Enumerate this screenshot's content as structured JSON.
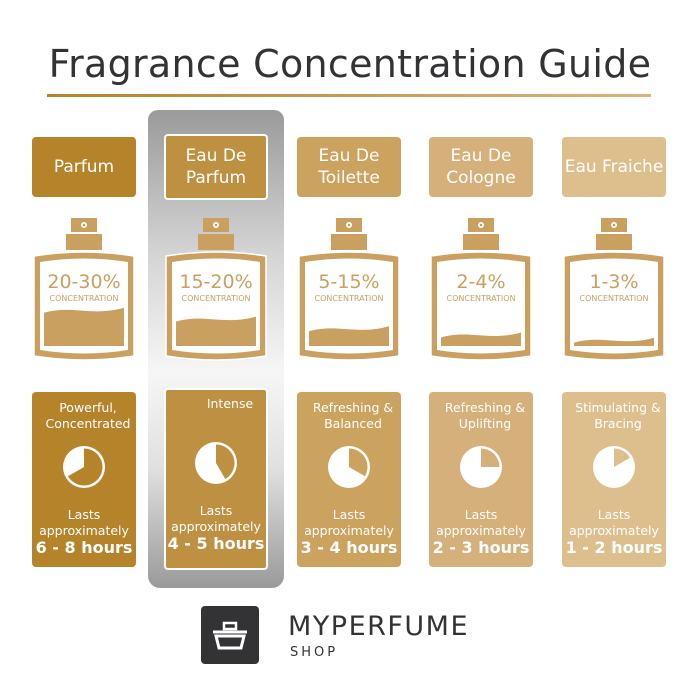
{
  "title": "Fragrance Concentration Guide",
  "bottle_color": "#C9A060",
  "concentration_label": "CONCENTRATION",
  "lasts_label_1": "Lasts",
  "lasts_label_2": "approximately",
  "columns": [
    {
      "name": "Parfum",
      "concentration": "20-30%",
      "description": "Powerful, Concentrated",
      "duration": "6 - 8 hours",
      "pie_hours": 8,
      "fill_level": 0.8,
      "color": "#B5832A",
      "highlighted": false
    },
    {
      "name": "Eau De Parfum",
      "concentration": "15-20%",
      "description": "Intense",
      "duration": "4 - 5 hours",
      "pie_hours": 5,
      "fill_level": 0.6,
      "color": "#BE9042",
      "highlighted": true
    },
    {
      "name": "Eau De Toilette",
      "concentration": "5-15%",
      "description": "Refreshing & Balanced",
      "duration": "3 - 4 hours",
      "pie_hours": 4,
      "fill_level": 0.38,
      "color": "#CBA25E",
      "highlighted": false
    },
    {
      "name": "Eau De Cologne",
      "concentration": "2-4%",
      "description": "Refreshing & Uplifting",
      "duration": "2 - 3 hours",
      "pie_hours": 3,
      "fill_level": 0.24,
      "color": "#D6B07A",
      "highlighted": false
    },
    {
      "name": "Eau Fraiche",
      "concentration": "1-3%",
      "description": "Stimulating & Bracing",
      "duration": "1 - 2 hours",
      "pie_hours": 2,
      "fill_level": 0.12,
      "color": "#DDBF8E",
      "highlighted": false
    }
  ],
  "logo": {
    "brand": "MYPERFUME",
    "sub": "SHOP"
  }
}
